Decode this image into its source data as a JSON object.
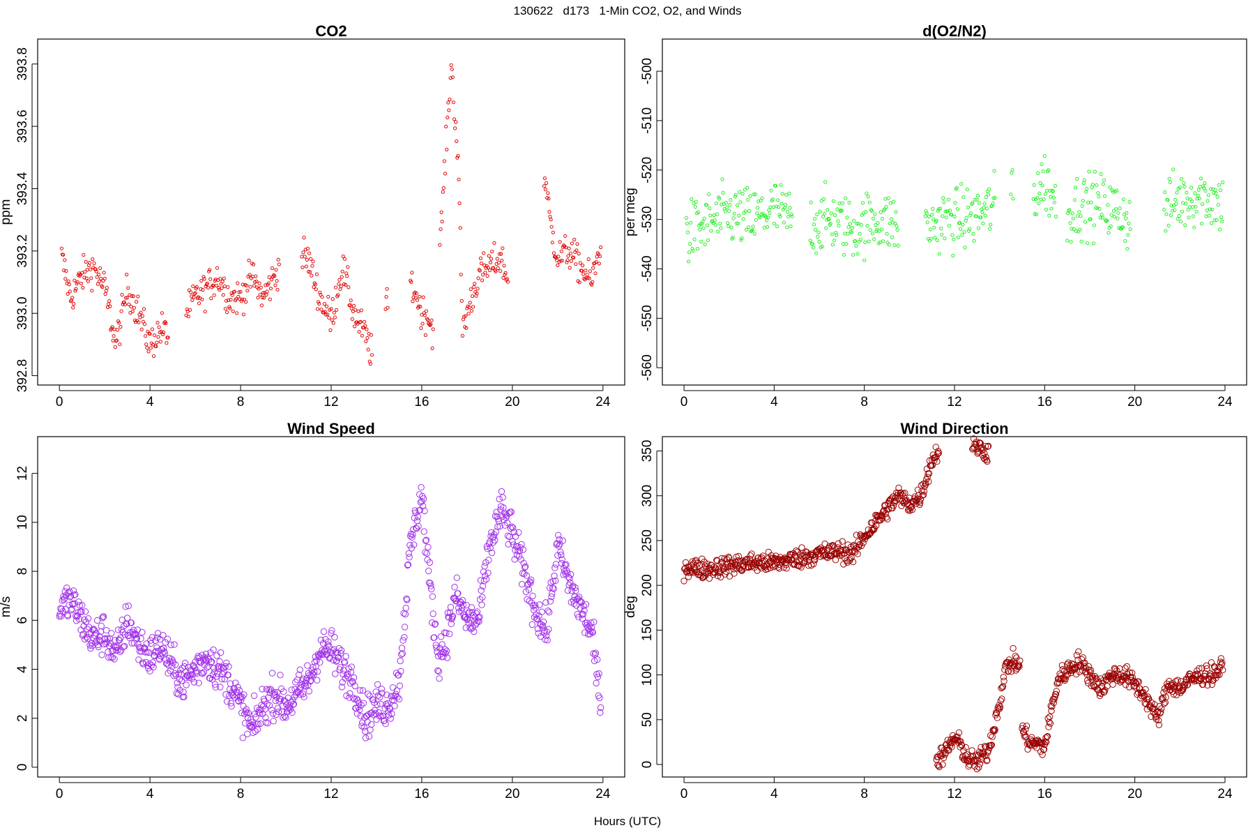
{
  "figure": {
    "title": "130622   d173   1-Min CO2, O2, and Winds",
    "xlabel": "Hours (UTC)"
  },
  "chart_data": [
    {
      "id": "co2",
      "type": "scatter",
      "title": "CO2",
      "xlabel": "",
      "ylabel": "ppm",
      "xlim": [
        -0.96,
        24.96
      ],
      "ylim": [
        392.77,
        393.88
      ],
      "xticks": [
        0,
        4,
        8,
        12,
        16,
        20,
        24
      ],
      "yticks": [
        392.8,
        393.0,
        393.2,
        393.4,
        393.6,
        393.8
      ],
      "ytick_labels": [
        "392.8",
        "393.0",
        "393.2",
        "393.4",
        "393.6",
        "393.8"
      ],
      "marker": "open-circle",
      "color": "#e00000",
      "grid": false,
      "segments": [
        {
          "x": [
            0.1,
            0.5,
            1.0,
            1.5,
            2.0,
            2.5,
            3.0,
            3.5,
            4.0,
            4.5,
            4.8
          ],
          "y": [
            393.18,
            393.05,
            393.12,
            393.15,
            393.08,
            392.9,
            393.08,
            393.0,
            392.9,
            392.95,
            392.93
          ]
        },
        {
          "x": [
            5.6,
            6.0,
            6.5,
            7.0,
            7.5,
            8.0,
            8.5,
            9.0,
            9.5,
            9.7
          ],
          "y": [
            393.0,
            393.05,
            393.08,
            393.12,
            393.05,
            393.05,
            393.12,
            393.05,
            393.12,
            393.15
          ]
        },
        {
          "x": [
            10.7,
            11.0,
            11.5,
            12.0,
            12.5,
            13.0,
            13.5,
            13.8
          ],
          "y": [
            393.19,
            393.17,
            393.05,
            392.98,
            393.15,
            393.0,
            392.93,
            392.87
          ]
        },
        {
          "x": [
            14.4,
            14.5
          ],
          "y": [
            393.02,
            393.02
          ]
        },
        {
          "x": [
            15.5,
            15.8,
            16.0,
            16.2,
            16.5
          ],
          "y": [
            393.1,
            393.05,
            393.0,
            393.0,
            392.95
          ]
        },
        {
          "x": [
            16.8,
            17.0,
            17.3,
            17.6,
            17.8,
            18.0,
            18.5,
            19.0,
            19.5,
            19.8
          ],
          "y": [
            393.2,
            393.45,
            393.8,
            393.5,
            392.95,
            393.0,
            393.12,
            393.15,
            393.18,
            393.1
          ]
        },
        {
          "x": [
            21.4,
            21.7,
            22.0,
            22.5,
            23.0,
            23.5,
            23.9
          ],
          "y": [
            393.45,
            393.28,
            393.18,
            393.2,
            393.15,
            393.1,
            393.22
          ]
        }
      ],
      "noise": 0.04
    },
    {
      "id": "o2",
      "type": "scatter",
      "title": "d(O2/N2)",
      "xlabel": "",
      "ylabel": "per meg",
      "xlim": [
        -0.96,
        24.96
      ],
      "ylim": [
        -563.5,
        -493.5
      ],
      "xticks": [
        0,
        4,
        8,
        12,
        16,
        20,
        24
      ],
      "yticks": [
        -500,
        -510,
        -520,
        -530,
        -540,
        -550,
        -560
      ],
      "ytick_labels": [
        "-500",
        "-510",
        "-520",
        "-530",
        "-540",
        "-550",
        "-560"
      ],
      "marker": "open-circle",
      "color": "#22ee22",
      "grid": false,
      "segments": [
        {
          "x": [
            0.1,
            1.0,
            2.0,
            3.0,
            4.0,
            4.8
          ],
          "y": [
            -533,
            -531,
            -529,
            -530,
            -528,
            -530
          ]
        },
        {
          "x": [
            5.6,
            6.5,
            7.5,
            8.5,
            9.5
          ],
          "y": [
            -531,
            -530,
            -532,
            -530,
            -531
          ]
        },
        {
          "x": [
            10.7,
            11.5,
            12.5,
            13.5,
            13.8
          ],
          "y": [
            -532,
            -530,
            -530,
            -528,
            -527
          ]
        },
        {
          "x": [
            14.5,
            14.6
          ],
          "y": [
            -523,
            -523
          ]
        },
        {
          "x": [
            15.5,
            16.0,
            16.5
          ],
          "y": [
            -525,
            -522,
            -527
          ]
        },
        {
          "x": [
            17.0,
            17.5,
            18.5,
            19.5,
            19.8
          ],
          "y": [
            -529,
            -527,
            -527,
            -529,
            -531
          ]
        },
        {
          "x": [
            21.3,
            22.0,
            23.0,
            23.9
          ],
          "y": [
            -528,
            -526,
            -525,
            -527
          ]
        }
      ],
      "noise": 4.5
    },
    {
      "id": "wspd",
      "type": "scatter",
      "title": "Wind Speed",
      "xlabel": "",
      "ylabel": "m/s",
      "xlim": [
        -0.96,
        24.96
      ],
      "ylim": [
        -0.4,
        13.5
      ],
      "xticks": [
        0,
        4,
        8,
        12,
        16,
        20,
        24
      ],
      "yticks": [
        0,
        2,
        4,
        6,
        8,
        10,
        12
      ],
      "ytick_labels": [
        "0",
        "2",
        "4",
        "6",
        "8",
        "10",
        "12"
      ],
      "marker": "open-circle",
      "color": "#a030e8",
      "grid": false,
      "segments": [
        {
          "x": [
            0.0,
            0.5,
            1.0,
            1.5,
            2.0,
            2.5,
            3.0,
            3.5,
            4.0,
            4.5,
            5.0,
            5.5,
            6.0,
            6.5,
            7.0,
            7.5,
            8.0,
            8.5,
            9.0,
            9.5,
            10.0,
            10.5,
            11.0,
            11.5,
            12.0,
            12.5,
            13.0,
            13.5,
            14.0,
            14.5,
            15.0,
            15.5,
            16.0,
            16.3,
            16.7,
            17.0,
            17.5,
            18.0,
            18.5,
            19.0,
            19.5,
            20.0,
            20.5,
            21.0,
            21.5,
            22.0,
            22.5,
            23.0,
            23.5,
            23.9
          ],
          "y": [
            6.5,
            6.8,
            6.0,
            5.2,
            5.5,
            4.5,
            6.0,
            5.0,
            4.5,
            5.0,
            4.0,
            3.5,
            4.0,
            4.5,
            4.0,
            3.5,
            2.5,
            1.5,
            2.5,
            3.0,
            2.5,
            3.0,
            3.5,
            4.8,
            4.8,
            4.0,
            3.5,
            2.0,
            2.5,
            2.5,
            3.5,
            9.0,
            11.2,
            8.0,
            4.5,
            5.0,
            7.0,
            6.0,
            6.0,
            9.0,
            10.5,
            9.5,
            8.0,
            6.5,
            5.5,
            9.0,
            7.5,
            6.5,
            5.5,
            2.5
          ]
        }
      ],
      "noise": 0.6
    },
    {
      "id": "wdir",
      "type": "scatter",
      "title": "Wind Direction",
      "xlabel": "",
      "ylabel": "deg",
      "xlim": [
        -0.96,
        24.96
      ],
      "ylim": [
        -14,
        366
      ],
      "xticks": [
        0,
        4,
        8,
        12,
        16,
        20,
        24
      ],
      "yticks": [
        0,
        50,
        100,
        150,
        200,
        250,
        300,
        350
      ],
      "ytick_labels": [
        "0",
        "50",
        "100",
        "150",
        "200",
        "250",
        "300",
        "350"
      ],
      "marker": "open-circle",
      "color": "#990000",
      "grid": false,
      "segments": [
        {
          "x": [
            0.0,
            1.0,
            2.0,
            3.0,
            4.0,
            5.0,
            6.0,
            7.0,
            7.5,
            8.0,
            8.5,
            9.0,
            9.5,
            10.0,
            10.5,
            11.0,
            11.3
          ],
          "y": [
            220,
            218,
            222,
            225,
            225,
            230,
            235,
            238,
            235,
            255,
            270,
            285,
            300,
            290,
            300,
            340,
            350
          ]
        },
        {
          "x": [
            12.8,
            13.0,
            13.5
          ],
          "y": [
            358,
            355,
            348
          ]
        },
        {
          "x": [
            11.2,
            11.5,
            12.0,
            12.3,
            12.6,
            13.0,
            13.5,
            14.0,
            14.3,
            14.6,
            14.9
          ],
          "y": [
            5,
            10,
            30,
            20,
            5,
            3,
            15,
            70,
            110,
            115,
            110
          ]
        },
        {
          "x": [
            15.0,
            15.3,
            15.7,
            16.0,
            16.3,
            16.6,
            17.0,
            17.5,
            18.0,
            18.5,
            19.0,
            19.5,
            20.0,
            20.5,
            21.0,
            21.5,
            22.0,
            22.5,
            23.0,
            23.5,
            23.9
          ],
          "y": [
            40,
            25,
            22,
            20,
            60,
            95,
            105,
            115,
            100,
            85,
            100,
            100,
            90,
            75,
            50,
            90,
            85,
            95,
            100,
            100,
            110
          ]
        }
      ],
      "noise": 8
    }
  ]
}
